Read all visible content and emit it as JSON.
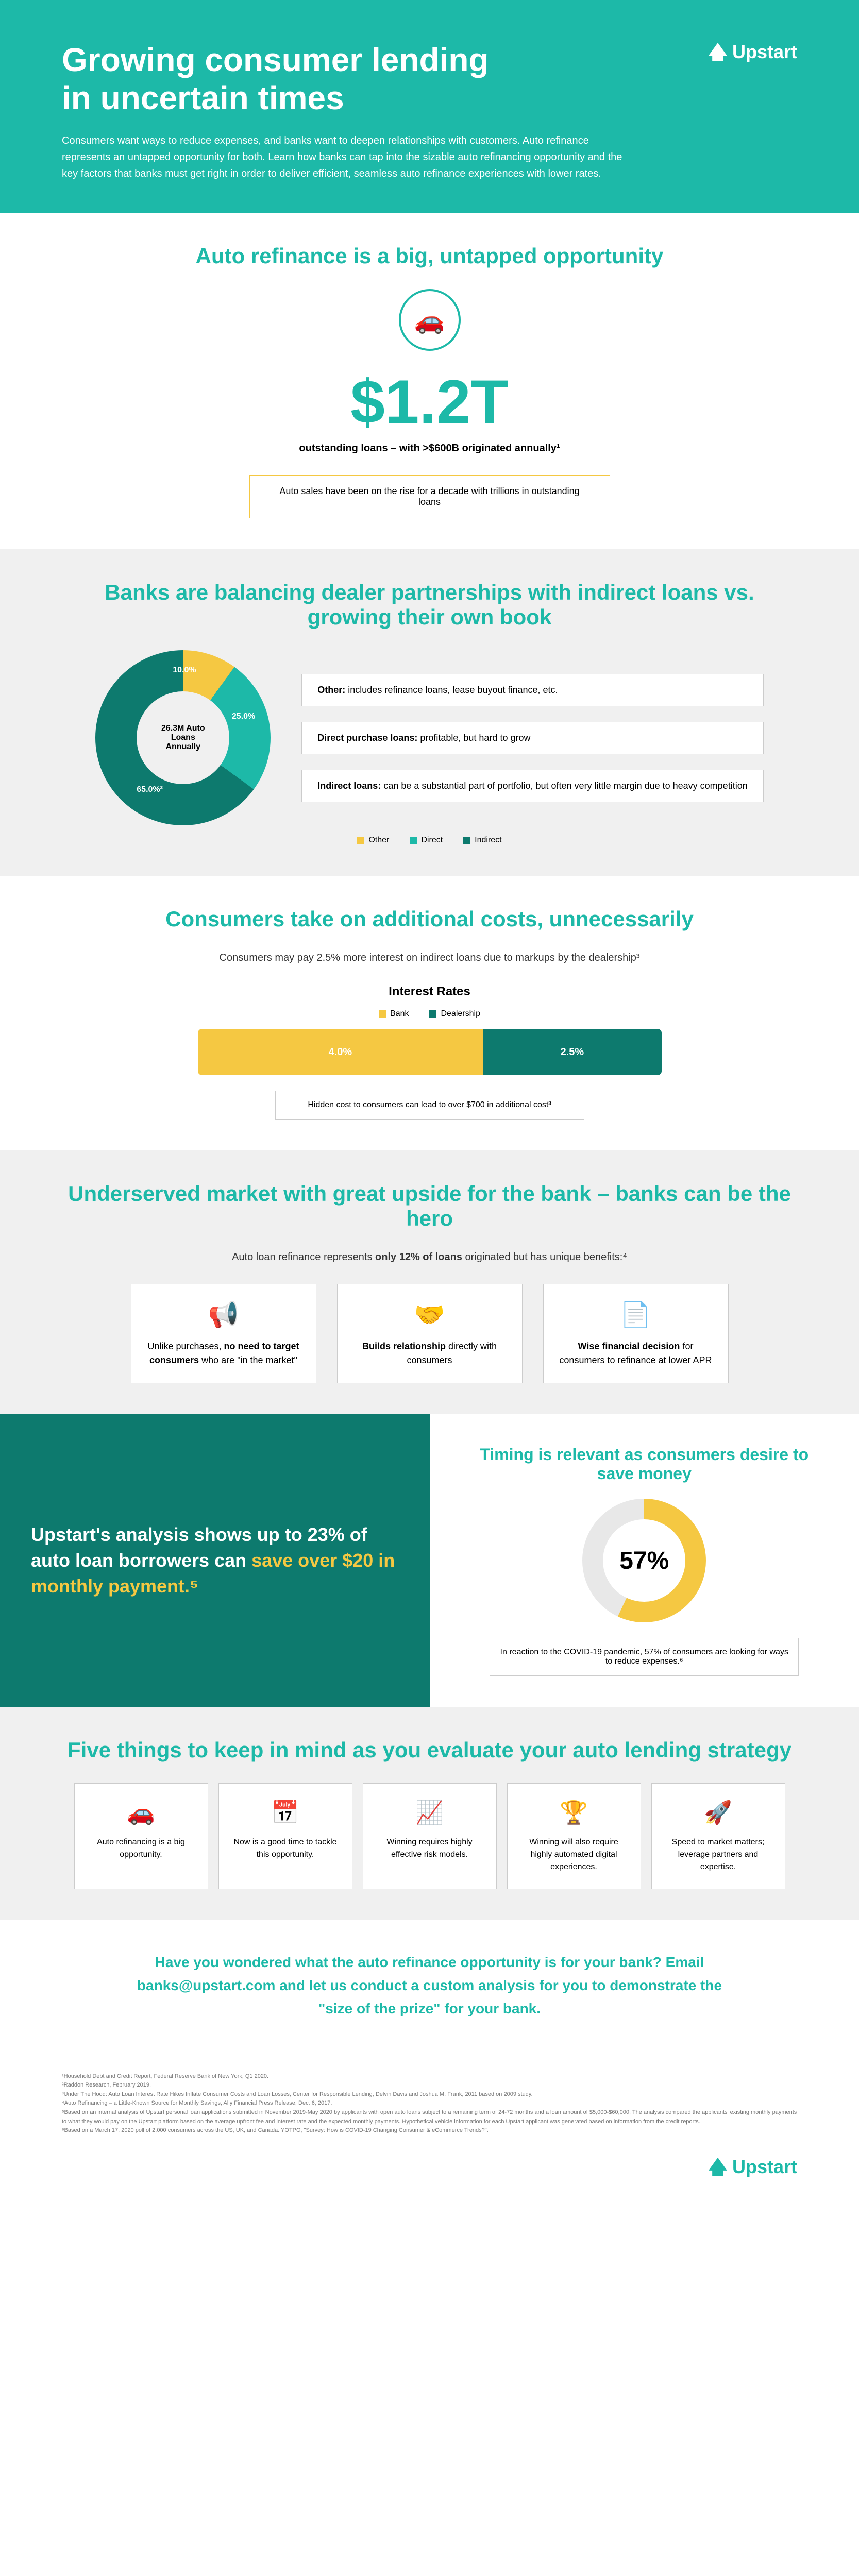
{
  "brand": "Upstart",
  "hero": {
    "title": "Growing consumer lending in uncertain times",
    "body": "Consumers want ways to reduce expenses, and banks want to deepen relationships with customers. Auto refinance represents an untapped opportunity for both. Learn how banks can tap into the sizable auto refinancing opportunity and the key factors that banks must get right in order to deliver efficient, seamless auto refinance experiences with lower rates."
  },
  "s1": {
    "heading": "Auto refinance is a big, untapped opportunity",
    "stat": "$1.2T",
    "stat_sub": "outstanding loans – with >$600B originated annually¹",
    "box": "Auto sales have been on the rise for a decade with trillions in outstanding loans"
  },
  "s2": {
    "heading": "Banks are balancing dealer partnerships with indirect loans vs. growing their own book",
    "donut": {
      "center_top": "26.3M Auto",
      "center_mid": "Loans",
      "center_bot": "Annually",
      "segments": [
        {
          "label": "Other",
          "pct": "10.0%",
          "color": "#f5c842"
        },
        {
          "label": "Direct",
          "pct": "25.0%",
          "color": "#1db9a8"
        },
        {
          "label": "Indirect",
          "pct": "65.0%²",
          "color": "#0d7a6e"
        }
      ]
    },
    "types": [
      {
        "title": "Other:",
        "body": " includes refinance loans, lease buyout finance, etc."
      },
      {
        "title": "Direct purchase loans:",
        "body": " profitable, but hard to grow"
      },
      {
        "title": "Indirect loans:",
        "body": " can be a substantial part of portfolio, but often very little margin due to heavy competition"
      }
    ],
    "legend": [
      "Other",
      "Direct",
      "Indirect"
    ]
  },
  "s3": {
    "heading": "Consumers take on additional costs, unnecessarily",
    "sub": "Consumers may pay 2.5% more interest on indirect loans due to markups by the dealership³",
    "title": "Interest Rates",
    "legend": [
      "Bank",
      "Dealership"
    ],
    "bank_rate": "4.0%",
    "deal_rate": "2.5%",
    "hidden": "Hidden cost to consumers can lead to over $700 in additional cost³",
    "colors": {
      "bank": "#f5c842",
      "deal": "#0d7a6e"
    }
  },
  "s4": {
    "heading": "Underserved market with great upside for the bank – banks can be the hero",
    "sub": "Auto loan refinance represents only 12% of loans originated but has unique benefits:⁴",
    "benefits": [
      {
        "icon": "📢",
        "html": "Unlike purchases, <strong>no need to target consumers</strong> who are \"in the market\""
      },
      {
        "icon": "🤝",
        "html": "<strong>Builds relationship</strong> directly with consumers"
      },
      {
        "icon": "📄",
        "html": "<strong>Wise financial decision</strong> for consumers to refinance at lower APR"
      }
    ]
  },
  "s5": {
    "teal_pre": "Upstart's analysis shows up to 23% of auto loan borrowers can ",
    "teal_hl": "save over $20 in monthly payment.⁵",
    "timing_h": "Timing is relevant as consumers desire to save money",
    "pct": "57%",
    "timing_box": "In reaction to the COVID-19 pandemic, 57% of consumers are looking for ways to reduce expenses.⁶"
  },
  "s6": {
    "heading": "Five things to keep in mind as you evaluate your auto lending strategy",
    "cards": [
      {
        "icon": "🚗",
        "text": "Auto refinancing is a big opportunity."
      },
      {
        "icon": "📅",
        "text": "Now is a good time to tackle this opportunity."
      },
      {
        "icon": "📈",
        "text": "Winning requires highly effective risk models."
      },
      {
        "icon": "🏆",
        "text": "Winning will also require highly automated digital experiences."
      },
      {
        "icon": "🚀",
        "text": "Speed to market matters; leverage partners and expertise."
      }
    ]
  },
  "cta": "Have you wondered what the auto refinance opportunity is for your bank? Email banks@upstart.com and let us conduct a custom analysis for you to demonstrate the \"size of the prize\" for your bank.",
  "footnotes": "¹Household Debt and Credit Report, Federal Reserve Bank of New York, Q1 2020.\n²Raddon Research, February 2019.\n³Under The Hood: Auto Loan Interest Rate Hikes Inflate Consumer Costs and Loan Losses, Center for Responsible Lending, Delvin Davis and Joshua M. Frank, 2011 based on 2009 study.\n⁴Auto Refinancing – a Little-Known Source for Monthly Savings, Ally Financial Press Release, Dec. 6, 2017.\n⁵Based on an internal analysis of Upstart personal loan applications submitted in November 2019-May 2020 by applicants with open auto loans subject to a remaining term of 24-72 months and a loan amount of $5,000-$60,000. The analysis compared the applicants' existing monthly payments to what they would pay on the Upstart platform based on the average upfront fee and interest rate and the expected monthly payments. Hypothetical vehicle information for each Upstart applicant was generated based on information from the credit reports.\n⁶Based on a March 17, 2020 poll of 2,000 consumers across the US, UK, and Canada. YOTPO, \"Survey: How is COVID-19 Changing Consumer & eCommerce Trends?\"."
}
